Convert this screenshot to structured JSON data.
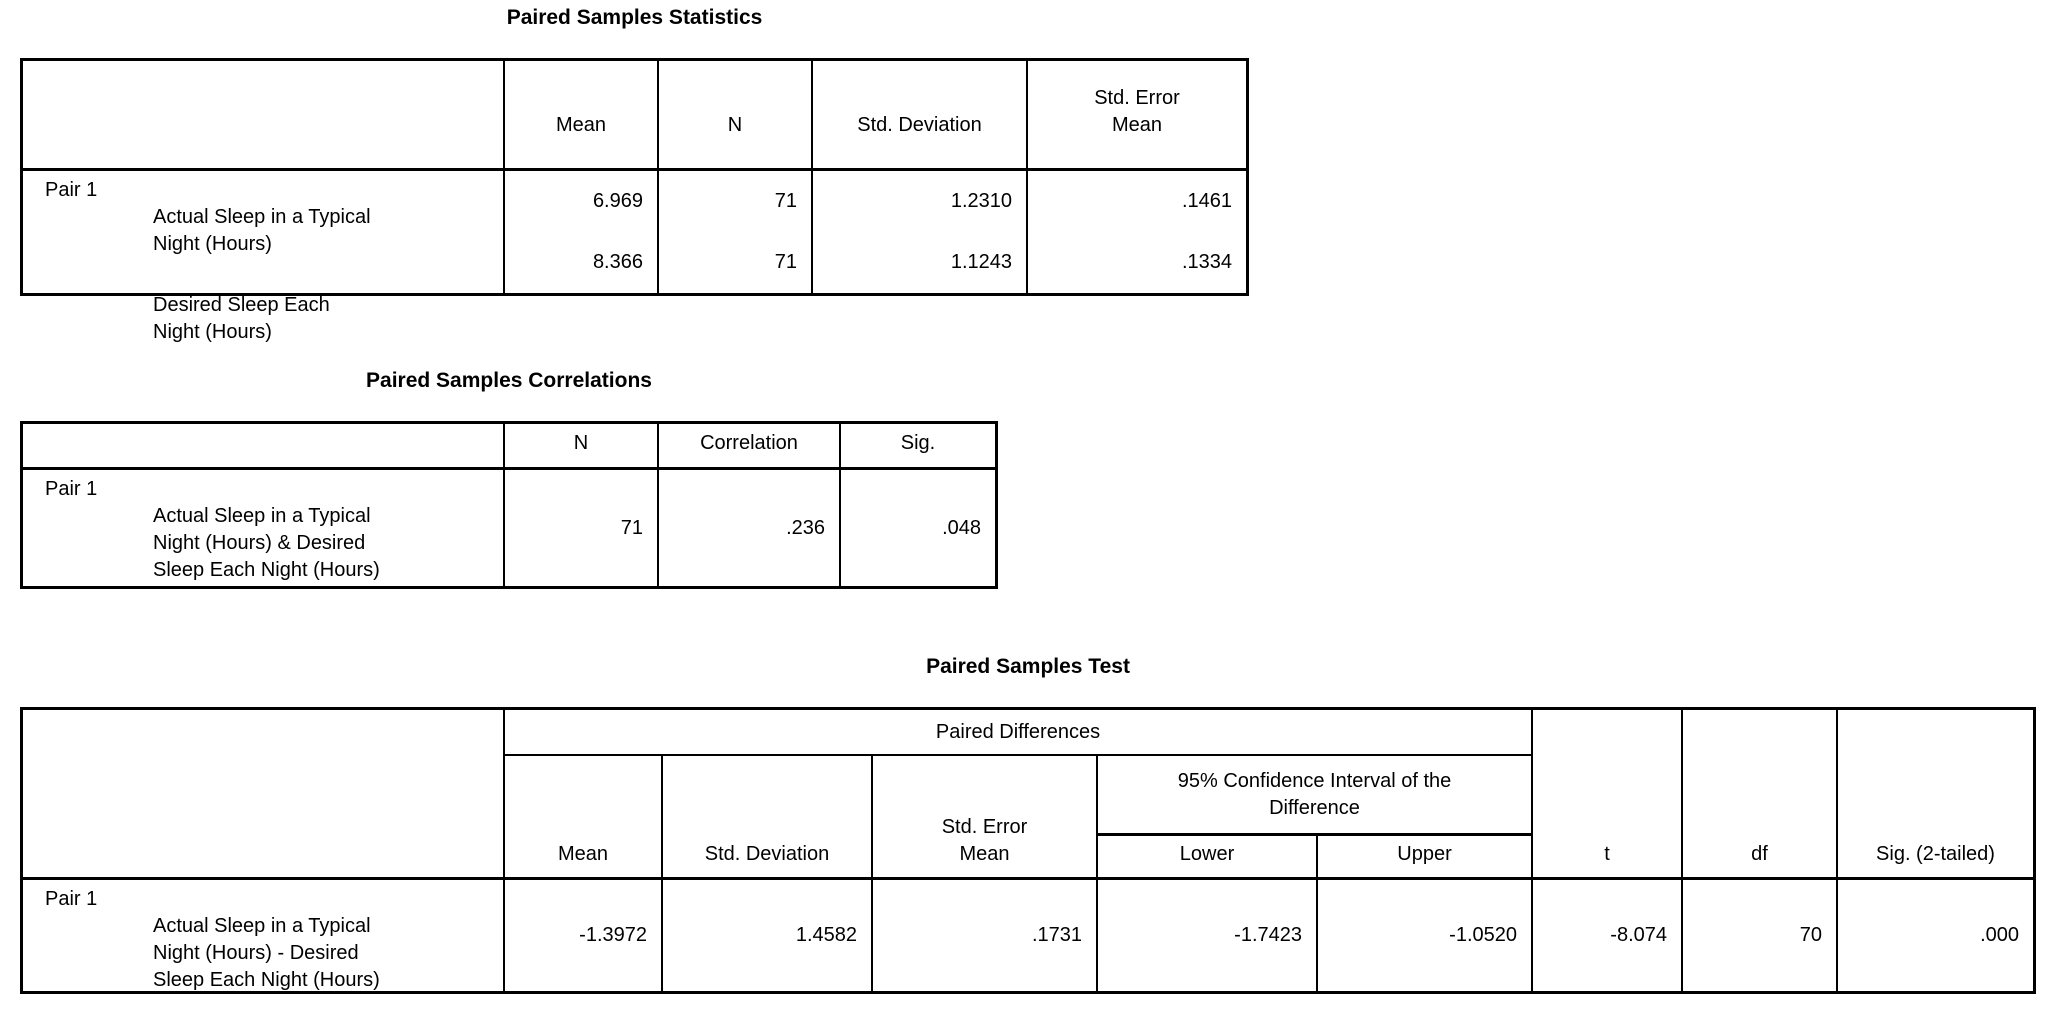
{
  "statistics": {
    "title": "Paired Samples Statistics",
    "pair_label": "Pair 1",
    "columns": {
      "mean": "Mean",
      "n": "N",
      "std_deviation": "Std. Deviation",
      "std_error_mean": "Std. Error\nMean"
    },
    "rows": [
      {
        "variable": "Actual Sleep in a Typical\nNight (Hours)",
        "mean": "6.969",
        "n": "71",
        "std_deviation": "1.2310",
        "std_error_mean": ".1461"
      },
      {
        "variable": "Desired Sleep Each\nNight (Hours)",
        "mean": "8.366",
        "n": "71",
        "std_deviation": "1.1243",
        "std_error_mean": ".1334"
      }
    ]
  },
  "correlations": {
    "title": "Paired Samples Correlations",
    "pair_label": "Pair 1",
    "columns": {
      "n": "N",
      "correlation": "Correlation",
      "sig": "Sig."
    },
    "row": {
      "variable": "Actual Sleep in a Typical\nNight (Hours) & Desired\nSleep Each Night (Hours)",
      "n": "71",
      "correlation": ".236",
      "sig": ".048"
    }
  },
  "test": {
    "title": "Paired Samples Test",
    "pair_label": "Pair 1",
    "group_header": "Paired Differences",
    "columns": {
      "mean": "Mean",
      "std_deviation": "Std. Deviation",
      "std_error_mean": "Std. Error\nMean",
      "ci_header": "95% Confidence Interval of the\nDifference",
      "lower": "Lower",
      "upper": "Upper",
      "t": "t",
      "df": "df",
      "sig_2_tailed": "Sig. (2-tailed)"
    },
    "row": {
      "variable": "Actual Sleep in a Typical\nNight (Hours) - Desired\nSleep Each Night (Hours)",
      "mean": "-1.3972",
      "std_deviation": "1.4582",
      "std_error_mean": ".1731",
      "lower": "-1.7423",
      "upper": "-1.0520",
      "t": "-8.074",
      "df": "70",
      "sig_2_tailed": ".000"
    }
  }
}
